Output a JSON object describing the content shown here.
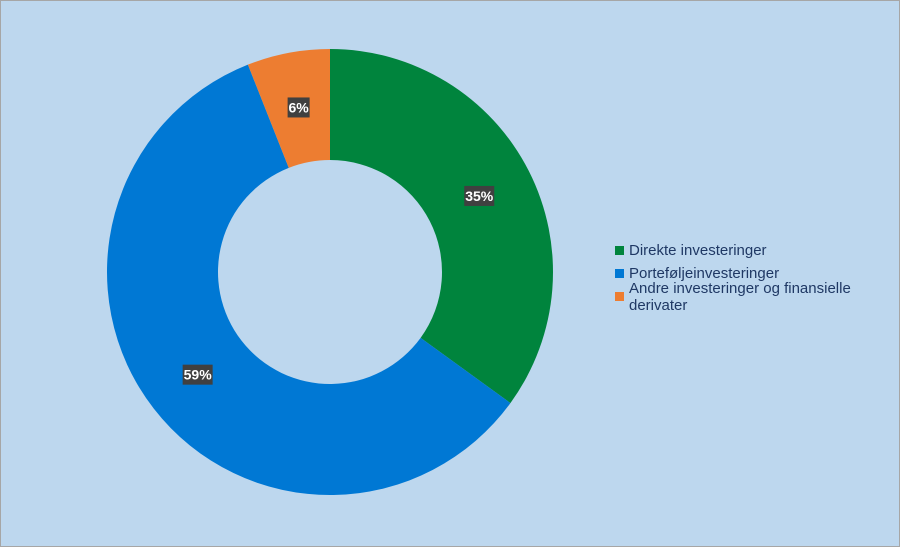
{
  "chart_data": {
    "type": "pie",
    "donut": true,
    "categories": [
      "Direkte investeringer",
      "Porteføljeinvesteringer",
      "Andre investeringer og finansielle derivater"
    ],
    "values": [
      35,
      59,
      6
    ],
    "labels": [
      "35%",
      "59%",
      "6%"
    ],
    "colors": [
      "#00843d",
      "#0078d4",
      "#ed7d31"
    ],
    "legend_position": "right"
  }
}
